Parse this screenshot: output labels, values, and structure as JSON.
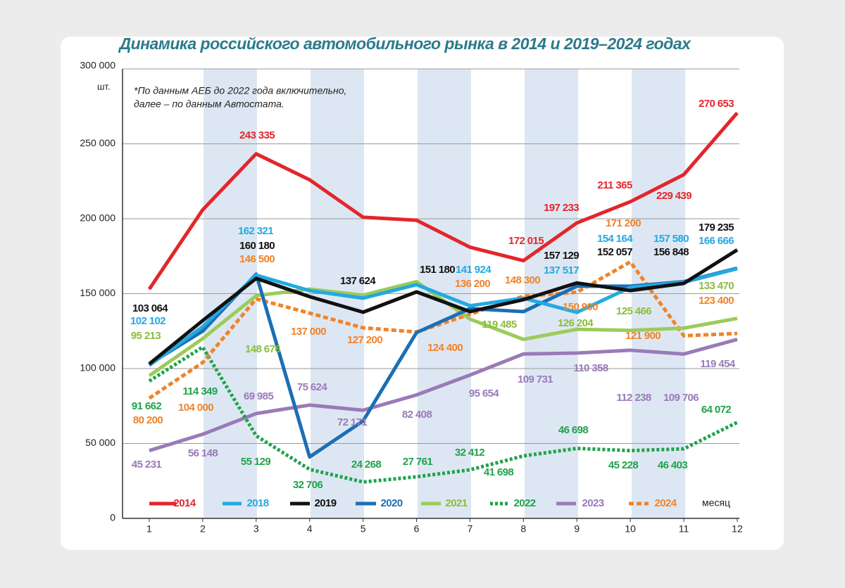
{
  "chart_data": {
    "type": "line",
    "title": "Динамика российского автомобильного рынка в 2014 и 2019–2024 годах",
    "y_unit": "шт.",
    "x_label": "месяц",
    "note": [
      "*По данным АЕБ до 2022 года включительно,",
      "далее – по данным Автостата."
    ],
    "x": [
      1,
      2,
      3,
      4,
      5,
      6,
      7,
      8,
      9,
      10,
      11,
      12
    ],
    "xlim": [
      0.5,
      12.04
    ],
    "xticks": [
      1,
      2,
      3,
      4,
      5,
      6,
      7,
      8,
      9,
      10,
      11,
      12
    ],
    "ylim": [
      0,
      300000
    ],
    "yticks": [
      0,
      {
        "value": 50000,
        "label": "50 000"
      },
      {
        "value": 100000,
        "label": "100 000"
      },
      {
        "value": 150000,
        "label": "150 000"
      },
      {
        "value": 200000,
        "label": "200 000"
      },
      {
        "value": 250000,
        "label": "250 000"
      },
      {
        "value": 300000,
        "label": "300 000"
      }
    ],
    "grid": true,
    "legend": "bottom",
    "series": [
      {
        "name": "2014",
        "color": "#e3262b",
        "style": "solid",
        "values": [
          153000,
          206000,
          243335,
          226000,
          201000,
          199000,
          181000,
          172015,
          197233,
          211365,
          229439,
          270653
        ],
        "value_labels": [
          null,
          null,
          "243 335",
          null,
          null,
          null,
          null,
          "172 015",
          "197 233",
          "211 365",
          "229 439",
          "270 653"
        ]
      },
      {
        "name": "2018",
        "color": "#23a9e1",
        "style": "solid",
        "values": [
          102102,
          128000,
          162321,
          152000,
          147000,
          156000,
          141924,
          147000,
          137517,
          154164,
          157580,
          166666
        ],
        "value_labels": [
          "102 102",
          null,
          "162 321",
          null,
          null,
          null,
          "141 924",
          null,
          "137 517",
          "154 164",
          "157 580",
          "166 666"
        ]
      },
      {
        "name": "2019",
        "color": "#111111",
        "style": "solid",
        "values": [
          103064,
          132000,
          160180,
          148000,
          137624,
          151180,
          138000,
          146000,
          157129,
          152057,
          156848,
          179235
        ],
        "value_labels": [
          "103 064",
          null,
          "160 180",
          null,
          "137 624",
          "151 180",
          null,
          null,
          "157 129",
          "152 057",
          "156 848",
          "179 235"
        ]
      },
      {
        "name": "2020",
        "color": "#1b6fb5",
        "style": "solid",
        "values": [
          103000,
          125000,
          163000,
          41000,
          65000,
          124000,
          140000,
          138000,
          155000,
          155000,
          158000,
          167000
        ]
      },
      {
        "name": "2021",
        "color": "#9ccb5a",
        "style": "solid",
        "values": [
          95213,
          120000,
          148676,
          153000,
          149000,
          158000,
          133000,
          119485,
          126204,
          125466,
          127000,
          133470
        ],
        "value_labels": [
          "95 213",
          null,
          "148 676",
          null,
          null,
          null,
          null,
          "119 485",
          "126 204",
          "125 466",
          null,
          "133 470"
        ]
      },
      {
        "name": "2022",
        "color": "#1fa34a",
        "style": "dotted",
        "values": [
          91662,
          114349,
          55129,
          32706,
          24268,
          27761,
          32412,
          41698,
          46698,
          45228,
          46403,
          64072
        ],
        "value_labels": [
          "91 662",
          "114 349",
          "55 129",
          "32 706",
          "24 268",
          "27 761",
          "32 412",
          "41 698",
          "46 698",
          "45 228",
          "46 403",
          "64 072"
        ]
      },
      {
        "name": "2023",
        "color": "#9a7ab8",
        "style": "solid",
        "values": [
          45231,
          56148,
          69985,
          75624,
          72171,
          82408,
          95654,
          109731,
          110358,
          112238,
          109706,
          119454
        ],
        "value_labels": [
          "45 231",
          "56 148",
          "69 985",
          "75 624",
          "72 171",
          "82 408",
          "95 654",
          "109 731",
          "110 358",
          "112 238",
          "109 706",
          "119 454"
        ]
      },
      {
        "name": "2024",
        "color": "#f0832a",
        "style": "dashed",
        "values": [
          80200,
          104000,
          146500,
          137000,
          127200,
          124400,
          136200,
          148300,
          150900,
          171200,
          121900,
          123400
        ],
        "value_labels": [
          "80 200",
          "104 000",
          "146 500",
          "137 000",
          "127 200",
          "124 400",
          "136 200",
          "148 300",
          "150 900",
          "171 200",
          "121 900",
          "123 400"
        ]
      }
    ]
  }
}
